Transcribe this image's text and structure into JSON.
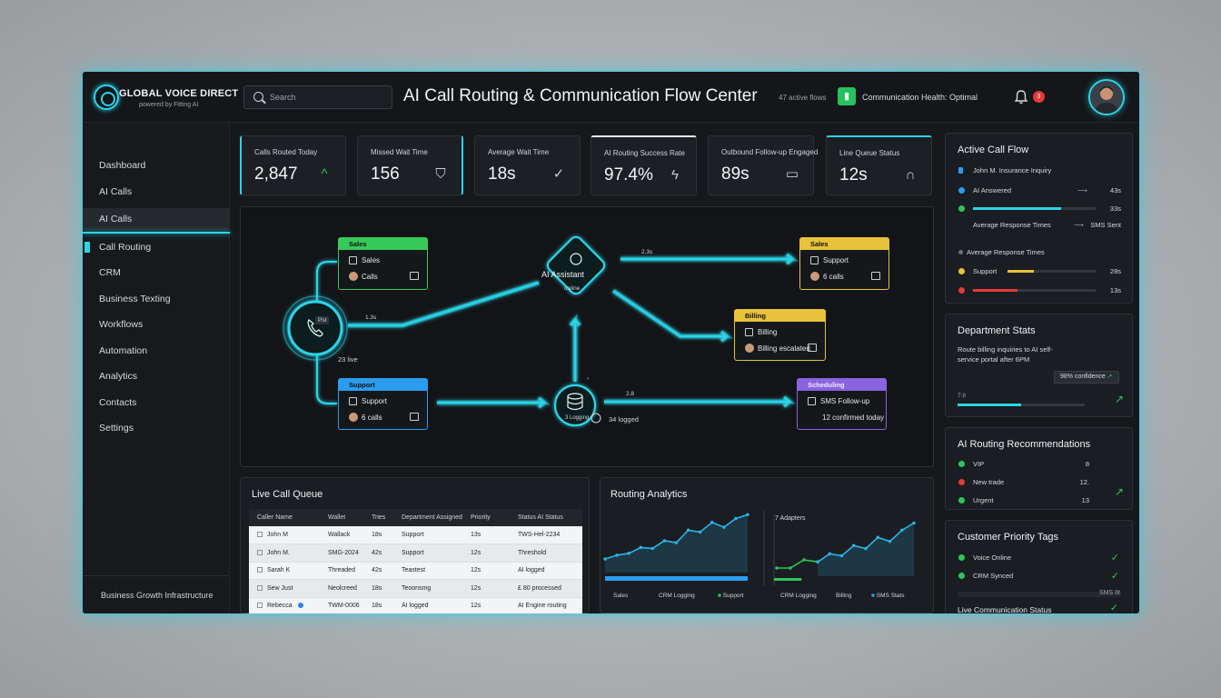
{
  "header": {
    "brand": "GLOBAL VOICE DIRECT",
    "brand_sub": "powered by Fitting AI",
    "search_placeholder": "Search",
    "title": "AI Call Routing & Communication Flow Center",
    "active_flows": "47 active flows",
    "health": "Communication Health: Optimal",
    "notifications": "3"
  },
  "sidebar": {
    "items": [
      "Dashboard",
      "AI Calls",
      "AI Calls",
      "Call Routing",
      "CRM",
      "Business Texting",
      "Workflows",
      "Automation",
      "Analytics",
      "Contacts",
      "Settings"
    ],
    "footer": "Business Growth Infrastructure"
  },
  "stats": [
    {
      "label": "Calls Routed Today",
      "value": "2,847",
      "icon": "trend-up-icon"
    },
    {
      "label": "Missed Wait Time",
      "value": "156",
      "icon": "shield-icon"
    },
    {
      "label": "Average Wait Time",
      "value": "18s",
      "icon": "check-icon"
    },
    {
      "label": "AI Routing Success Rate",
      "value": "97.4%",
      "icon": "bolt-icon"
    },
    {
      "label": "Outbound Follow-up Engaged",
      "value": "89s",
      "icon": "chat-icon"
    },
    {
      "label": "Line Queue Status",
      "value": "12s",
      "icon": "headset-icon"
    }
  ],
  "flow": {
    "hub_badge": "Pst",
    "hub_label": "23 live",
    "hub_time": "1.3s",
    "ai_assistant": {
      "title": "AI Assistant",
      "status": "online"
    },
    "db_label": "3 Logging",
    "db_count": "34 logged",
    "time_top": "2.3s",
    "time_mid": "2.8",
    "nodes": {
      "sales_left": {
        "header": "Sales",
        "row1": "Sales",
        "row2": "Calls"
      },
      "support_left": {
        "header": "Support",
        "row1": "Support",
        "row2": "6 calls"
      },
      "sales_right": {
        "header": "Sales",
        "row1": "Support",
        "row2": "6 calls"
      },
      "billing": {
        "header": "Billing",
        "row1": "Billing",
        "row2": "Billing escalated"
      },
      "scheduling": {
        "header": "Scheduling",
        "row1": "SMS Follow-up",
        "row2": "12 confirmed today"
      }
    },
    "colors": {
      "green": "#37c95a",
      "blue": "#2b9df0",
      "yellow": "#e7c23a",
      "purple": "#8a63e0",
      "accent": "#2bd4e8"
    }
  },
  "queue": {
    "title": "Live Call Queue",
    "columns": [
      "Caller Name",
      "Wallet",
      "Tries",
      "Department Assigned",
      "Priority",
      "Status",
      "AI Status"
    ],
    "rows": [
      [
        "John M",
        "Wallack",
        "18s",
        "Support",
        "13s",
        "TWS-Hel-2234"
      ],
      [
        "John M.",
        "SMG-2024",
        "42s",
        "Support",
        "12s",
        "Threshold"
      ],
      [
        "Sarah K",
        "Threaded",
        "42s",
        "Teastest",
        "12s",
        "AI logged"
      ],
      [
        "Sew Just",
        "Neolcreed",
        "18s",
        "Teoonsmg",
        "12s",
        "£ 80 processed"
      ],
      [
        "Rebecca",
        "TWM-0006",
        "18s",
        "AI logged",
        "12s",
        "AI Engine routing"
      ]
    ]
  },
  "analytics": {
    "title": "Routing Analytics",
    "chart2_label": "7 Adapters",
    "legend_left": [
      "Sales",
      "CRM Logging",
      "Support"
    ],
    "legend_right": [
      "CRM Logging",
      "Billing",
      "SMS Stats"
    ],
    "left_line": [
      14,
      18,
      20,
      26,
      25,
      33,
      31,
      44,
      42,
      52,
      47,
      56,
      60
    ],
    "right_line": [
      8,
      8,
      16,
      14,
      22,
      20,
      30,
      27,
      38,
      34,
      45,
      52
    ],
    "left_bar_pct": 1.0,
    "right_bar_pct": 0.2
  },
  "right": {
    "active_flow": {
      "title": "Active Call Flow",
      "caller": "John M. Insurance Inquiry",
      "rows": [
        {
          "label": "AI Answered",
          "value": "43s",
          "color": "#2b9df0",
          "pct": 0.0
        },
        {
          "label": "",
          "value": "33s",
          "color": "#2bd4e8",
          "pct": 0.72
        },
        {
          "label": "Average Response Times",
          "value": "SMS Sent",
          "color": "",
          "pct": 0
        },
        {
          "label": "Average Response Times",
          "value": "",
          "color": "#9aa4aa",
          "pct": 0
        },
        {
          "label": "Support",
          "value": "28s",
          "color": "#e7c23a",
          "pct": 0.3
        },
        {
          "label": "",
          "value": "13s",
          "color": "#e23a3a",
          "pct": 0.36
        }
      ]
    },
    "dept_stats": {
      "title": "Department Stats",
      "text": "Route billing inquiries to AI self-service portal after 6PM",
      "button": "98% confidence",
      "metric": "7.8",
      "pct": 0.5
    },
    "recommendations": {
      "title": "AI Routing Recommendations",
      "rows": [
        {
          "label": "VIP",
          "value": "8",
          "color": "#2ec65b"
        },
        {
          "label": "New trade",
          "value": "12.",
          "color": "#e23a3a"
        },
        {
          "label": "Urgent",
          "value": "13",
          "color": "#2ec65b"
        }
      ]
    },
    "priority_tags": {
      "title": "Customer Priority Tags",
      "rows": [
        {
          "label": "Voice Online",
          "color": "#2ec65b"
        },
        {
          "label": "CRM Synced",
          "color": "#2ec65b"
        }
      ],
      "extra": "SMS 8t",
      "live": "Live Communication Status"
    }
  }
}
